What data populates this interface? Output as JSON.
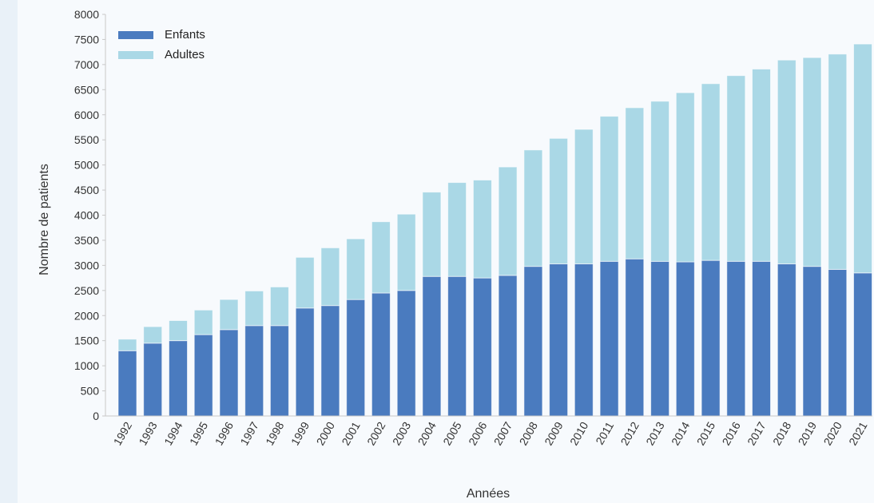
{
  "chart_data": {
    "type": "bar",
    "stacked": true,
    "title": "",
    "xlabel": "Années",
    "ylabel": "Nombre de patients",
    "ylim": [
      0,
      8000
    ],
    "ytick_step": 500,
    "grid": false,
    "legend_position": "top-left",
    "categories": [
      "1992",
      "1993",
      "1994",
      "1995",
      "1996",
      "1997",
      "1998",
      "1999",
      "2000",
      "2001",
      "2002",
      "2003",
      "2004",
      "2005",
      "2006",
      "2007",
      "2008",
      "2009",
      "2010",
      "2011",
      "2012",
      "2013",
      "2014",
      "2015",
      "2016",
      "2017",
      "2018",
      "2019",
      "2020",
      "2021"
    ],
    "series": [
      {
        "name": "Enfants",
        "color": "#4a7bbf",
        "values": [
          1300,
          1450,
          1500,
          1620,
          1720,
          1800,
          1800,
          2150,
          2200,
          2320,
          2450,
          2500,
          2780,
          2780,
          2750,
          2800,
          2980,
          3030,
          3030,
          3080,
          3130,
          3080,
          3070,
          3100,
          3080,
          3080,
          3030,
          2980,
          2920,
          2850
        ]
      },
      {
        "name": "Adultes",
        "color": "#aad8e6",
        "values": [
          230,
          330,
          400,
          490,
          600,
          690,
          770,
          1010,
          1150,
          1210,
          1420,
          1520,
          1680,
          1870,
          1950,
          2160,
          2320,
          2500,
          2680,
          2890,
          3010,
          3190,
          3370,
          3520,
          3700,
          3830,
          4060,
          4160,
          4290,
          4560
        ]
      }
    ]
  }
}
